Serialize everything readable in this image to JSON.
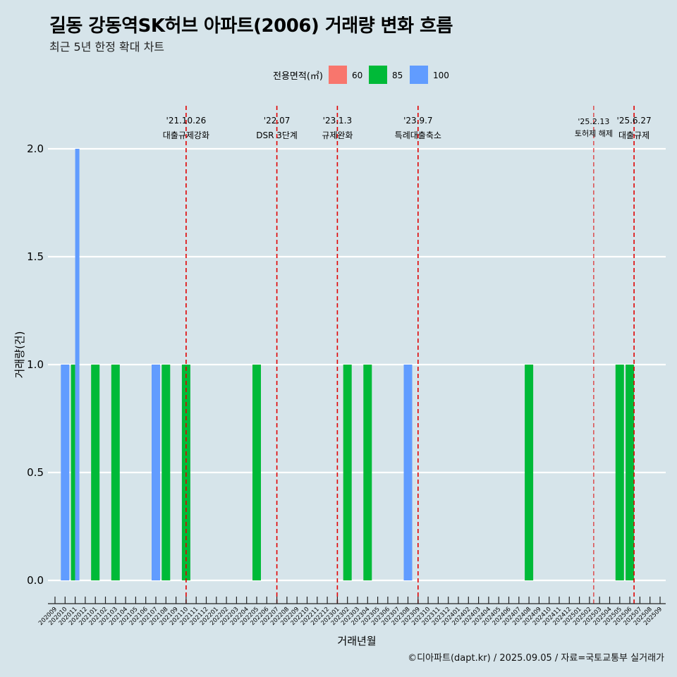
{
  "title": "길동 강동역SK허브 아파트(2006) 거래량 변화 흐름",
  "subtitle": "최근 5년 한정 확대 차트",
  "caption": "©디아파트(dapt.kr) / 2025.09.05 / 자료=국토교통부 실거래가",
  "colors": {
    "background": "#d6e4ea",
    "s60": "#f8766d",
    "s85": "#00ba38",
    "s100": "#619cff",
    "vline": "#e00000",
    "grid": "#ffffff"
  },
  "chart_data": {
    "type": "bar",
    "xlabel": "거래년월",
    "ylabel": "거래량(건)",
    "ylim": [
      0,
      2
    ],
    "yticks": [
      "0.0",
      "0.5",
      "1.0",
      "1.5",
      "2.0"
    ],
    "yticks_values": [
      0,
      0.5,
      1,
      1.5,
      2
    ],
    "grid": true,
    "legend": {
      "title": "전용면적(㎡)",
      "position": "top",
      "entries": [
        "60",
        "85",
        "100"
      ]
    },
    "categories": [
      "202009",
      "202010",
      "202011",
      "202012",
      "202101",
      "202102",
      "202103",
      "202104",
      "202105",
      "202106",
      "202107",
      "202108",
      "202109",
      "202110",
      "202111",
      "202112",
      "202201",
      "202202",
      "202203",
      "202204",
      "202205",
      "202206",
      "202207",
      "202208",
      "202209",
      "202210",
      "202211",
      "202212",
      "202301",
      "202302",
      "202303",
      "202304",
      "202305",
      "202306",
      "202307",
      "202308",
      "202309",
      "202310",
      "202311",
      "202312",
      "202401",
      "202402",
      "202403",
      "202404",
      "202405",
      "202406",
      "202407",
      "202408",
      "202409",
      "202410",
      "202411",
      "202412",
      "202501",
      "202502",
      "202503",
      "202504",
      "202505",
      "202506",
      "202507",
      "202508",
      "202509"
    ],
    "bars": [
      {
        "month": "202010",
        "area": "100",
        "value": 1
      },
      {
        "month": "202011",
        "area": "85",
        "value": 1
      },
      {
        "month": "202011",
        "area": "100",
        "value": 2
      },
      {
        "month": "202101",
        "area": "85",
        "value": 1
      },
      {
        "month": "202103",
        "area": "85",
        "value": 1
      },
      {
        "month": "202107",
        "area": "100",
        "value": 1
      },
      {
        "month": "202108",
        "area": "85",
        "value": 1
      },
      {
        "month": "202110",
        "area": "85",
        "value": 1
      },
      {
        "month": "202205",
        "area": "85",
        "value": 1
      },
      {
        "month": "202302",
        "area": "85",
        "value": 1
      },
      {
        "month": "202304",
        "area": "85",
        "value": 1
      },
      {
        "month": "202308",
        "area": "100",
        "value": 1
      },
      {
        "month": "202408",
        "area": "85",
        "value": 1
      },
      {
        "month": "202505",
        "area": "85",
        "value": 1
      },
      {
        "month": "202506",
        "area": "85",
        "value": 1
      }
    ],
    "events": [
      {
        "month": "202110",
        "date": "'21.10.26",
        "label": "대출규제강화"
      },
      {
        "month": "202207",
        "date": "'22.07",
        "label": "DSR 3단계"
      },
      {
        "month": "202301",
        "date": "'23.1.3",
        "label": "규제완화"
      },
      {
        "month": "202309",
        "date": "'23.9.7",
        "label": "특례대출축소"
      },
      {
        "month": "202502",
        "date": "'25.2.13",
        "label": "토허제 해제"
      },
      {
        "month": "202506",
        "date": "'25.6.27",
        "label": "대출규제"
      }
    ]
  }
}
